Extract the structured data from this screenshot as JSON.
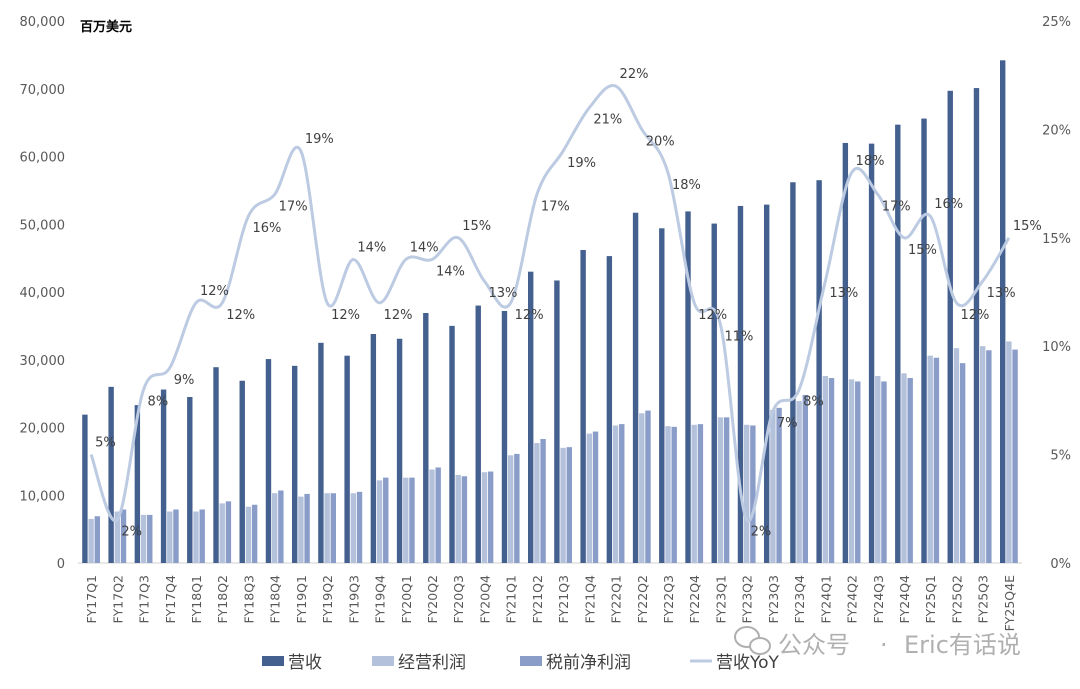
{
  "chart_data": {
    "type": "bar",
    "unit_label": "百万美元",
    "categories": [
      "FY17Q1",
      "FY17Q2",
      "FY17Q3",
      "FY17Q4",
      "FY18Q1",
      "FY18Q2",
      "FY18Q3",
      "FY18Q4",
      "FY19Q1",
      "FY19Q2",
      "FY19Q3",
      "FY19Q4",
      "FY20Q1",
      "FY20Q2",
      "FY20Q3",
      "FY20Q4",
      "FY21Q1",
      "FY21Q2",
      "FY21Q3",
      "FY21Q4",
      "FY22Q1",
      "FY22Q2",
      "FY22Q3",
      "FY22Q4",
      "FY23Q1",
      "FY23Q2",
      "FY23Q3",
      "FY23Q4",
      "FY24Q1",
      "FY24Q2",
      "FY24Q3",
      "FY24Q4",
      "FY25Q1",
      "FY25Q2",
      "FY25Q3",
      "FY25Q4E"
    ],
    "ylim": [
      0,
      80000
    ],
    "y2lim": [
      0,
      0.25
    ],
    "yticks": [
      "0",
      "10,000",
      "20,000",
      "30,000",
      "40,000",
      "50,000",
      "60,000",
      "70,000",
      "80,000"
    ],
    "y2ticks": [
      "0%",
      "5%",
      "10%",
      "15%",
      "20%",
      "25%"
    ],
    "grid": false,
    "legend_position": "bottom",
    "series": [
      {
        "name": "营收",
        "type": "bar",
        "color": "#44608f",
        "values": [
          21900,
          26000,
          23300,
          25600,
          24500,
          28900,
          26900,
          30100,
          29100,
          32500,
          30600,
          33800,
          33100,
          36900,
          35000,
          38000,
          37200,
          43000,
          41700,
          46200,
          45300,
          51700,
          49400,
          51900,
          50100,
          52700,
          52900,
          56200,
          56500,
          62000,
          61900,
          64700,
          65600,
          69700,
          70100,
          74200
        ]
      },
      {
        "name": "经营利润",
        "type": "bar",
        "color": "#b4c1db",
        "values": [
          6500,
          7600,
          7100,
          7600,
          7600,
          8800,
          8300,
          10300,
          9800,
          10300,
          10300,
          12200,
          12600,
          13800,
          13000,
          13400,
          15900,
          17700,
          17000,
          19100,
          20300,
          22100,
          20200,
          20400,
          21500,
          20400,
          22600,
          23900,
          27600,
          27100,
          27600,
          28000,
          30600,
          31700,
          32000,
          32700
        ]
      },
      {
        "name": "税前净利润",
        "type": "bar",
        "color": "#8a9dc9",
        "values": [
          6900,
          7900,
          7100,
          7900,
          7900,
          9100,
          8600,
          10700,
          10200,
          10300,
          10500,
          12600,
          12600,
          14100,
          12800,
          13500,
          16100,
          18300,
          17100,
          19400,
          20500,
          22500,
          20100,
          20500,
          21500,
          20300,
          22900,
          24800,
          27300,
          26800,
          26800,
          27300,
          30300,
          29500,
          31400,
          31500
        ]
      },
      {
        "name": "营收YoY",
        "type": "line",
        "color": "#bccbe2",
        "axis": "right",
        "values": [
          0.05,
          0.02,
          0.08,
          0.09,
          0.12,
          0.12,
          0.16,
          0.17,
          0.19,
          0.12,
          0.14,
          0.12,
          0.14,
          0.14,
          0.15,
          0.13,
          0.12,
          0.17,
          0.19,
          0.21,
          0.22,
          0.2,
          0.18,
          0.12,
          0.11,
          0.02,
          0.07,
          0.08,
          0.13,
          0.18,
          0.17,
          0.15,
          0.16,
          0.12,
          0.13,
          0.15
        ],
        "labels": [
          "5%",
          "2%",
          "8%",
          "9%",
          "12%",
          "12%",
          "16%",
          "17%",
          "19%",
          "12%",
          "14%",
          "12%",
          "14%",
          "14%",
          "15%",
          "13%",
          "12%",
          "17%",
          "19%",
          "21%",
          "22%",
          "20%",
          "18%",
          "12%",
          "11%",
          "2%",
          "7%",
          "8%",
          "13%",
          "18%",
          "17%",
          "15%",
          "16%",
          "12%",
          "13%",
          "15%"
        ]
      }
    ]
  },
  "watermark": {
    "brand": "公众号",
    "separator": "·",
    "author": "Eric有话说"
  }
}
